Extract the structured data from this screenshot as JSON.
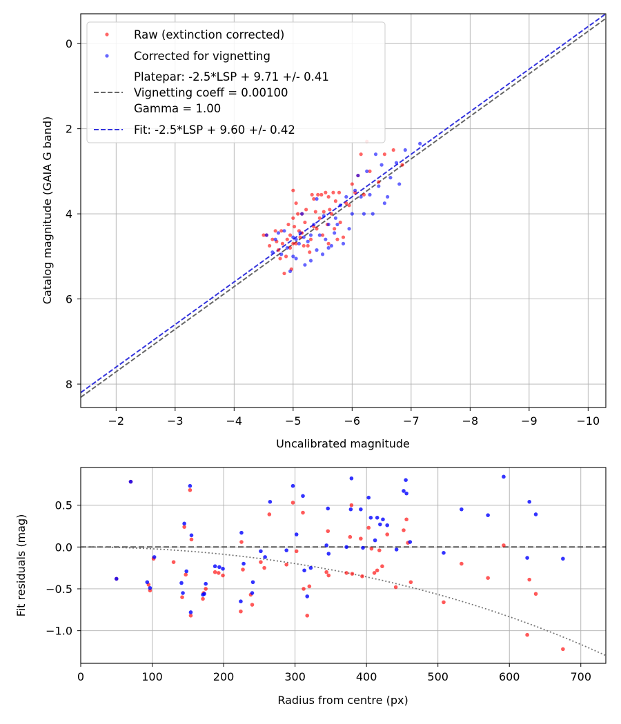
{
  "chart_data": [
    {
      "type": "scatter",
      "title": "",
      "xlabel": "Uncalibrated magnitude",
      "ylabel": "Catalog magnitude (GAIA G band)",
      "xlim": [
        -1.4,
        -10.3
      ],
      "ylim": [
        8.55,
        -0.7
      ],
      "x_inverted": true,
      "y_inverted": true,
      "grid": true,
      "legend_position": "upper-left",
      "xticks": [
        "−2",
        "−3",
        "−4",
        "−5",
        "−6",
        "−7",
        "−8",
        "−9",
        "−10"
      ],
      "xtick_values": [
        -2,
        -3,
        -4,
        -5,
        -6,
        -7,
        -8,
        -9,
        -10
      ],
      "yticks": [
        "0",
        "2",
        "4",
        "6",
        "8"
      ],
      "ytick_values": [
        0,
        2,
        4,
        6,
        8
      ],
      "colors": {
        "raw": "#ff0000",
        "corrected": "#0000ff",
        "platepar": "#666666",
        "fit": "#3333dd"
      },
      "legend": {
        "raw": "Raw (extinction corrected)",
        "corrected": "Corrected for vignetting",
        "platepar_lines": [
          "Platepar: -2.5*LSP + 9.71 +/- 0.41",
          "Vignetting coeff = 0.00100",
          "Gamma = 1.00"
        ],
        "fit": "Fit: -2.5*LSP + 9.60 +/- 0.42"
      },
      "series": [
        {
          "name": "Raw (extinction corrected)",
          "points": [
            [
              -4.5,
              4.5
            ],
            [
              -4.55,
              4.5
            ],
            [
              -4.6,
              4.75
            ],
            [
              -4.65,
              4.6
            ],
            [
              -4.7,
              4.4
            ],
            [
              -4.72,
              4.65
            ],
            [
              -4.75,
              4.85
            ],
            [
              -4.78,
              5.05
            ],
            [
              -4.8,
              4.4
            ],
            [
              -4.82,
              4.7
            ],
            [
              -4.85,
              5.4
            ],
            [
              -4.88,
              5.0
            ],
            [
              -4.9,
              4.6
            ],
            [
              -4.92,
              4.25
            ],
            [
              -4.95,
              4.5
            ],
            [
              -4.97,
              5.3
            ],
            [
              -5.0,
              4.7
            ],
            [
              -5.0,
              4.1
            ],
            [
              -5.02,
              4.3
            ],
            [
              -5.05,
              3.75
            ],
            [
              -5.05,
              4.7
            ],
            [
              -5.08,
              4.0
            ],
            [
              -5.1,
              4.4
            ],
            [
              -5.12,
              4.55
            ],
            [
              -5.15,
              4.0
            ],
            [
              -5.18,
              4.75
            ],
            [
              -5.2,
              4.2
            ],
            [
              -5.22,
              3.9
            ],
            [
              -5.25,
              4.75
            ],
            [
              -5.28,
              4.9
            ],
            [
              -5.3,
              4.6
            ],
            [
              -5.32,
              3.55
            ],
            [
              -5.35,
              3.65
            ],
            [
              -5.38,
              3.95
            ],
            [
              -5.4,
              4.35
            ],
            [
              -5.42,
              3.55
            ],
            [
              -5.45,
              4.1
            ],
            [
              -5.48,
              3.55
            ],
            [
              -5.5,
              4.5
            ],
            [
              -5.52,
              3.95
            ],
            [
              -5.55,
              3.5
            ],
            [
              -5.58,
              4.25
            ],
            [
              -5.6,
              3.6
            ],
            [
              -5.62,
              3.9
            ],
            [
              -5.65,
              4.0
            ],
            [
              -5.68,
              3.5
            ],
            [
              -5.7,
              4.35
            ],
            [
              -5.72,
              3.7
            ],
            [
              -5.75,
              4.6
            ],
            [
              -5.78,
              3.5
            ],
            [
              -5.8,
              4.2
            ],
            [
              -5.85,
              4.55
            ],
            [
              -5.9,
              3.75
            ],
            [
              -5.95,
              3.8
            ],
            [
              -6.0,
              3.3
            ],
            [
              -6.05,
              3.5
            ],
            [
              -6.1,
              3.1
            ],
            [
              -6.15,
              2.6
            ],
            [
              -6.2,
              3.55
            ],
            [
              -6.25,
              2.3
            ],
            [
              -6.3,
              3.0
            ],
            [
              -6.45,
              3.25
            ],
            [
              -6.55,
              2.6
            ],
            [
              -6.7,
              2.5
            ],
            [
              -6.85,
              2.85
            ],
            [
              -5.0,
              3.45
            ],
            [
              -4.95,
              4.8
            ],
            [
              -5.15,
              4.45
            ],
            [
              -5.35,
              4.3
            ],
            [
              -5.6,
              4.7
            ]
          ]
        },
        {
          "name": "Corrected for vignetting",
          "points": [
            [
              -4.55,
              4.5
            ],
            [
              -4.65,
              4.9
            ],
            [
              -4.7,
              4.6
            ],
            [
              -4.75,
              4.45
            ],
            [
              -4.8,
              4.95
            ],
            [
              -4.85,
              4.4
            ],
            [
              -4.9,
              4.8
            ],
            [
              -4.95,
              5.35
            ],
            [
              -5.0,
              4.55
            ],
            [
              -5.0,
              5.0
            ],
            [
              -5.05,
              4.6
            ],
            [
              -5.05,
              5.05
            ],
            [
              -5.1,
              4.7
            ],
            [
              -5.12,
              4.45
            ],
            [
              -5.15,
              4.0
            ],
            [
              -5.18,
              4.55
            ],
            [
              -5.2,
              5.2
            ],
            [
              -5.25,
              4.65
            ],
            [
              -5.3,
              4.5
            ],
            [
              -5.35,
              4.25
            ],
            [
              -5.4,
              4.85
            ],
            [
              -5.45,
              4.5
            ],
            [
              -5.5,
              4.95
            ],
            [
              -5.52,
              4.05
            ],
            [
              -5.55,
              4.6
            ],
            [
              -5.6,
              4.25
            ],
            [
              -5.65,
              4.75
            ],
            [
              -5.7,
              4.45
            ],
            [
              -5.72,
              4.1
            ],
            [
              -5.75,
              4.25
            ],
            [
              -5.8,
              3.8
            ],
            [
              -5.85,
              4.7
            ],
            [
              -5.9,
              3.6
            ],
            [
              -5.95,
              4.35
            ],
            [
              -6.0,
              4.0
            ],
            [
              -6.05,
              3.45
            ],
            [
              -6.1,
              3.1
            ],
            [
              -6.15,
              3.6
            ],
            [
              -6.2,
              4.0
            ],
            [
              -6.25,
              3.0
            ],
            [
              -6.3,
              3.55
            ],
            [
              -6.35,
              4.0
            ],
            [
              -6.4,
              2.6
            ],
            [
              -6.45,
              3.35
            ],
            [
              -6.5,
              2.85
            ],
            [
              -6.55,
              3.75
            ],
            [
              -6.6,
              3.6
            ],
            [
              -6.65,
              3.15
            ],
            [
              -6.75,
              2.8
            ],
            [
              -6.8,
              3.3
            ],
            [
              -6.9,
              2.5
            ],
            [
              -7.15,
              2.35
            ],
            [
              -5.3,
              5.1
            ],
            [
              -5.6,
              4.8
            ],
            [
              -5.4,
              3.65
            ]
          ]
        }
      ],
      "lines": [
        {
          "name": "Platepar: -2.5*LSP + 9.71 +/- 0.41",
          "style": "dashed",
          "slope": 1.0,
          "intercept": 9.71
        },
        {
          "name": "Fit: -2.5*LSP + 9.60 +/- 0.42",
          "style": "dashed",
          "slope": 1.0,
          "intercept": 9.6
        }
      ]
    },
    {
      "type": "scatter",
      "title": "",
      "xlabel": "Radius from centre (px)",
      "ylabel": "Fit residuals (mag)",
      "xlim": [
        0,
        735
      ],
      "ylim": [
        -1.39,
        0.95
      ],
      "grid": true,
      "xticks": [
        "0",
        "100",
        "200",
        "300",
        "400",
        "500",
        "600",
        "700"
      ],
      "xtick_values": [
        0,
        100,
        200,
        300,
        400,
        500,
        600,
        700
      ],
      "yticks": [
        "0.5",
        "0.0",
        "−0.5",
        "−1.0"
      ],
      "ytick_values": [
        0.5,
        0.0,
        -0.5,
        -1.0
      ],
      "colors": {
        "raw": "#ff0000",
        "corrected": "#0000ff",
        "zero_line": "#555555",
        "vignetting_curve": "#777777"
      },
      "series": [
        {
          "name": "Raw",
          "points": [
            [
              50,
              -0.38
            ],
            [
              70,
              0.78
            ],
            [
              95,
              -0.45
            ],
            [
              97,
              -0.52
            ],
            [
              102,
              -0.14
            ],
            [
              130,
              -0.18
            ],
            [
              142,
              -0.6
            ],
            [
              145,
              0.24
            ],
            [
              147,
              -0.33
            ],
            [
              153,
              0.68
            ],
            [
              154,
              -0.82
            ],
            [
              155,
              0.09
            ],
            [
              171,
              -0.62
            ],
            [
              172,
              -0.55
            ],
            [
              175,
              -0.5
            ],
            [
              188,
              -0.3
            ],
            [
              193,
              -0.31
            ],
            [
              199,
              -0.34
            ],
            [
              224,
              -0.77
            ],
            [
              225,
              0.06
            ],
            [
              227,
              -0.27
            ],
            [
              238,
              -0.57
            ],
            [
              240,
              -0.69
            ],
            [
              252,
              -0.18
            ],
            [
              257,
              -0.25
            ],
            [
              264,
              0.39
            ],
            [
              288,
              -0.21
            ],
            [
              297,
              0.53
            ],
            [
              302,
              -0.05
            ],
            [
              311,
              0.41
            ],
            [
              312,
              -0.5
            ],
            [
              317,
              -0.82
            ],
            [
              320,
              -0.47
            ],
            [
              344,
              -0.3
            ],
            [
              346,
              0.19
            ],
            [
              347,
              -0.34
            ],
            [
              372,
              -0.31
            ],
            [
              377,
              0.12
            ],
            [
              379,
              0.5
            ],
            [
              392,
              0.1
            ],
            [
              394,
              -0.35
            ],
            [
              403,
              0.23
            ],
            [
              407,
              -0.02
            ],
            [
              411,
              -0.31
            ],
            [
              415,
              -0.28
            ],
            [
              418,
              -0.04
            ],
            [
              422,
              -0.23
            ],
            [
              429,
              0.15
            ],
            [
              441,
              -0.48
            ],
            [
              452,
              0.2
            ],
            [
              456,
              0.33
            ],
            [
              462,
              -0.42
            ],
            [
              508,
              -0.66
            ],
            [
              533,
              -0.2
            ],
            [
              570,
              -0.37
            ],
            [
              592,
              0.02
            ],
            [
              625,
              -1.05
            ],
            [
              628,
              -0.39
            ],
            [
              637,
              -0.56
            ],
            [
              675,
              -1.22
            ],
            [
              458,
              0.05
            ],
            [
              380,
              -0.32
            ]
          ]
        },
        {
          "name": "Corrected",
          "points": [
            [
              50,
              -0.38
            ],
            [
              70,
              0.78
            ],
            [
              93,
              -0.42
            ],
            [
              97,
              -0.49
            ],
            [
              103,
              -0.12
            ],
            [
              141,
              -0.43
            ],
            [
              143,
              -0.55
            ],
            [
              145,
              0.28
            ],
            [
              148,
              -0.29
            ],
            [
              153,
              0.73
            ],
            [
              154,
              -0.78
            ],
            [
              155,
              0.14
            ],
            [
              171,
              -0.57
            ],
            [
              173,
              -0.56
            ],
            [
              175,
              -0.44
            ],
            [
              188,
              -0.23
            ],
            [
              194,
              -0.24
            ],
            [
              199,
              -0.26
            ],
            [
              224,
              -0.65
            ],
            [
              225,
              0.17
            ],
            [
              228,
              -0.2
            ],
            [
              240,
              -0.55
            ],
            [
              241,
              -0.42
            ],
            [
              252,
              -0.05
            ],
            [
              258,
              -0.12
            ],
            [
              265,
              0.54
            ],
            [
              288,
              -0.04
            ],
            [
              297,
              0.73
            ],
            [
              302,
              0.15
            ],
            [
              311,
              0.61
            ],
            [
              313,
              -0.28
            ],
            [
              317,
              -0.59
            ],
            [
              322,
              -0.25
            ],
            [
              344,
              0.02
            ],
            [
              346,
              0.46
            ],
            [
              347,
              -0.08
            ],
            [
              372,
              0.0
            ],
            [
              378,
              0.45
            ],
            [
              379,
              0.82
            ],
            [
              392,
              0.45
            ],
            [
              395,
              -0.01
            ],
            [
              403,
              0.59
            ],
            [
              406,
              0.35
            ],
            [
              412,
              0.08
            ],
            [
              415,
              0.35
            ],
            [
              419,
              0.27
            ],
            [
              423,
              0.33
            ],
            [
              429,
              0.26
            ],
            [
              442,
              -0.03
            ],
            [
              452,
              0.67
            ],
            [
              455,
              0.8
            ],
            [
              456,
              0.64
            ],
            [
              461,
              0.06
            ],
            [
              508,
              -0.07
            ],
            [
              533,
              0.45
            ],
            [
              570,
              0.38
            ],
            [
              592,
              0.84
            ],
            [
              625,
              -0.13
            ],
            [
              628,
              0.54
            ],
            [
              637,
              0.39
            ],
            [
              675,
              -0.14
            ]
          ]
        }
      ],
      "lines": [
        {
          "name": "zero",
          "style": "dashed",
          "y": 0
        },
        {
          "name": "vignetting",
          "style": "dotted",
          "coeff": 0.001
        }
      ]
    }
  ]
}
